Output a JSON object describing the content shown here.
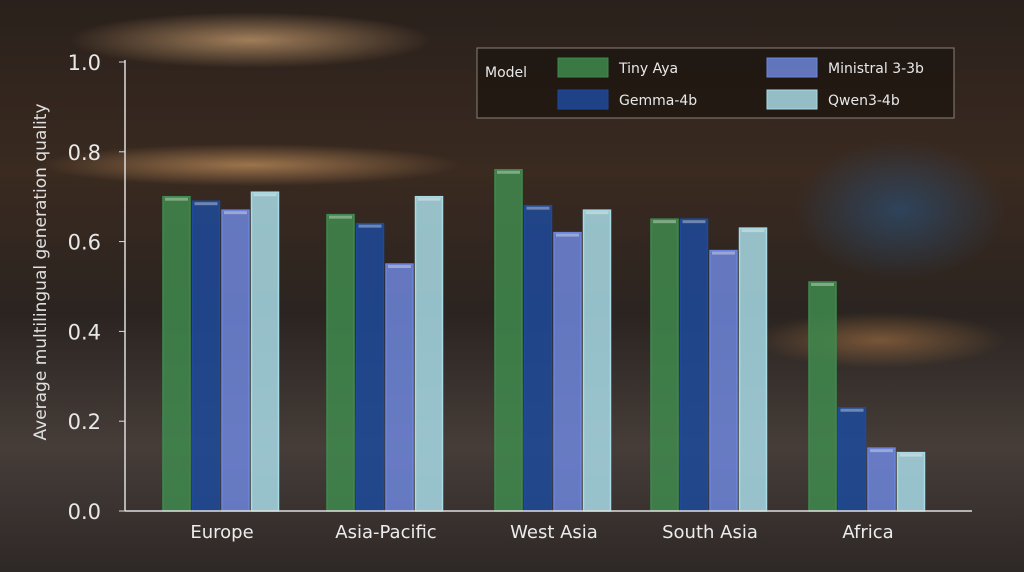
{
  "chart_data": {
    "type": "bar",
    "title": "",
    "xlabel": "",
    "ylabel": "Average multilingual generation quality",
    "ylim": [
      0,
      1.0
    ],
    "yticks": [
      "0.0",
      "0.2",
      "0.4",
      "0.6",
      "0.8",
      "1.0"
    ],
    "grid": false,
    "legend_title": "Model",
    "legend_position": "top-right",
    "categories": [
      "Europe",
      "Asia-Pacific",
      "West Asia",
      "South Asia",
      "Africa"
    ],
    "series": [
      {
        "name": "Tiny Aya",
        "color": "#3f8a4e",
        "values": [
          0.7,
          0.66,
          0.76,
          0.65,
          0.51
        ]
      },
      {
        "name": "Gemma-4b",
        "color": "#1d4a9a",
        "values": [
          0.69,
          0.64,
          0.68,
          0.65,
          0.23
        ]
      },
      {
        "name": "Ministral 3-3b",
        "color": "#6d86dc",
        "values": [
          0.67,
          0.55,
          0.62,
          0.58,
          0.14
        ]
      },
      {
        "name": "Qwen3-4b",
        "color": "#a8dbe6",
        "values": [
          0.71,
          0.7,
          0.67,
          0.63,
          0.13
        ]
      }
    ]
  }
}
